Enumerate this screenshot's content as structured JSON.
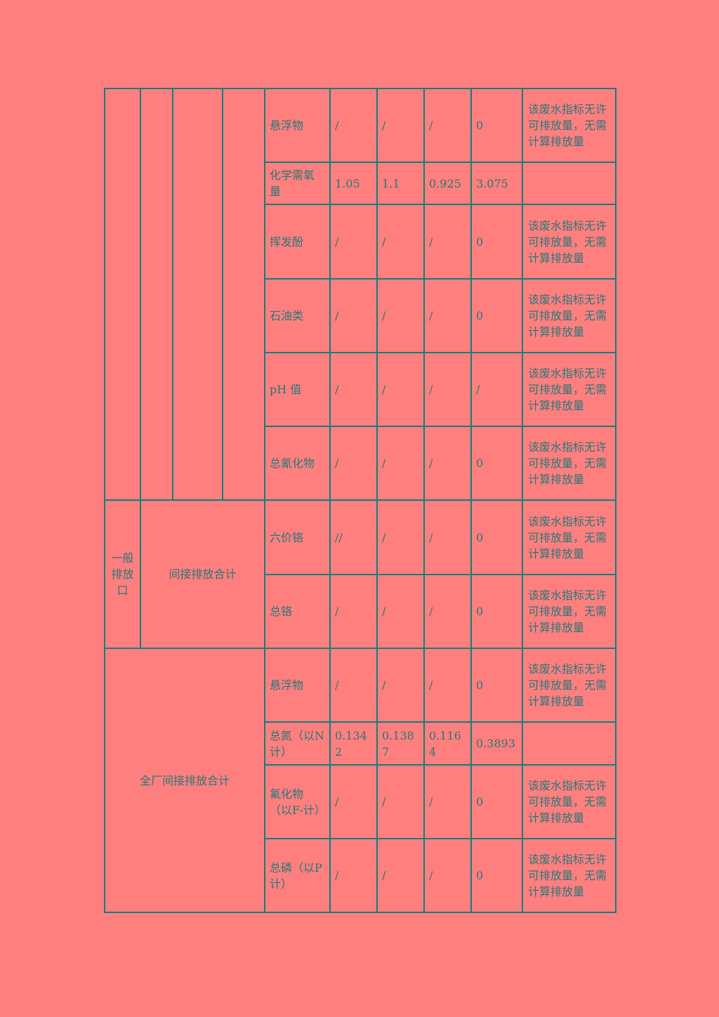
{
  "table": {
    "group_labels": {
      "general_outlet": "一般排放口",
      "indirect_total": "间接排放合计",
      "plant_indirect_total": "全厂间接排放合计"
    },
    "rows": [
      {
        "pollutant": "悬浮物",
        "v1": "/",
        "v2": "/",
        "v3": "/",
        "total": "0",
        "note": "该废水指标无许可排放量，无需计算排放量"
      },
      {
        "pollutant": "化学需氧量",
        "v1": "1.05",
        "v2": "1.1",
        "v3": "0.925",
        "total": "3.075",
        "note": ""
      },
      {
        "pollutant": "挥发酚",
        "v1": "/",
        "v2": "/",
        "v3": "/",
        "total": "0",
        "note": "该废水指标无许可排放量，无需计算排放量"
      },
      {
        "pollutant": "石油类",
        "v1": "/",
        "v2": "/",
        "v3": "/",
        "total": "0",
        "note": "该废水指标无许可排放量，无需计算排放量"
      },
      {
        "pollutant": "pH 值",
        "v1": "/",
        "v2": "/",
        "v3": "/",
        "total": "/",
        "note": "该废水指标无许可排放量，无需计算排放量"
      },
      {
        "pollutant": "总氰化物",
        "v1": "/",
        "v2": "/",
        "v3": "/",
        "total": "0",
        "note": "该废水指标无许可排放量，无需计算排放量"
      },
      {
        "pollutant": "六价铬",
        "v1": "//",
        "v2": "/",
        "v3": "/",
        "total": "0",
        "note": "该废水指标无许可排放量，无需计算排放量"
      },
      {
        "pollutant": "总铬",
        "v1": "/",
        "v2": "/",
        "v3": "/",
        "total": "0",
        "note": "该废水指标无许可排放量，无需计算排放量"
      },
      {
        "pollutant": "悬浮物",
        "v1": "/",
        "v2": "/",
        "v3": "/",
        "total": "0",
        "note": "该废水指标无许可排放量，无需计算排放量"
      },
      {
        "pollutant": "总氮（以N计）",
        "v1": "0.1342",
        "v2": "0.1387",
        "v3": "0.1164",
        "total": "0.3893",
        "note": ""
      },
      {
        "pollutant": "氟化物（以F-计）",
        "v1": "/",
        "v2": "/",
        "v3": "/",
        "total": "0",
        "note": "该废水指标无许可排放量，无需计算排放量"
      },
      {
        "pollutant": "总磷（以P计）",
        "v1": "/",
        "v2": "/",
        "v3": "/",
        "total": "0",
        "note": "该废水指标无许可排放量，无需计算排放量"
      }
    ]
  },
  "colors": {
    "background": "#ff7f7f",
    "border": "#17807c",
    "text": "#2c7878"
  }
}
